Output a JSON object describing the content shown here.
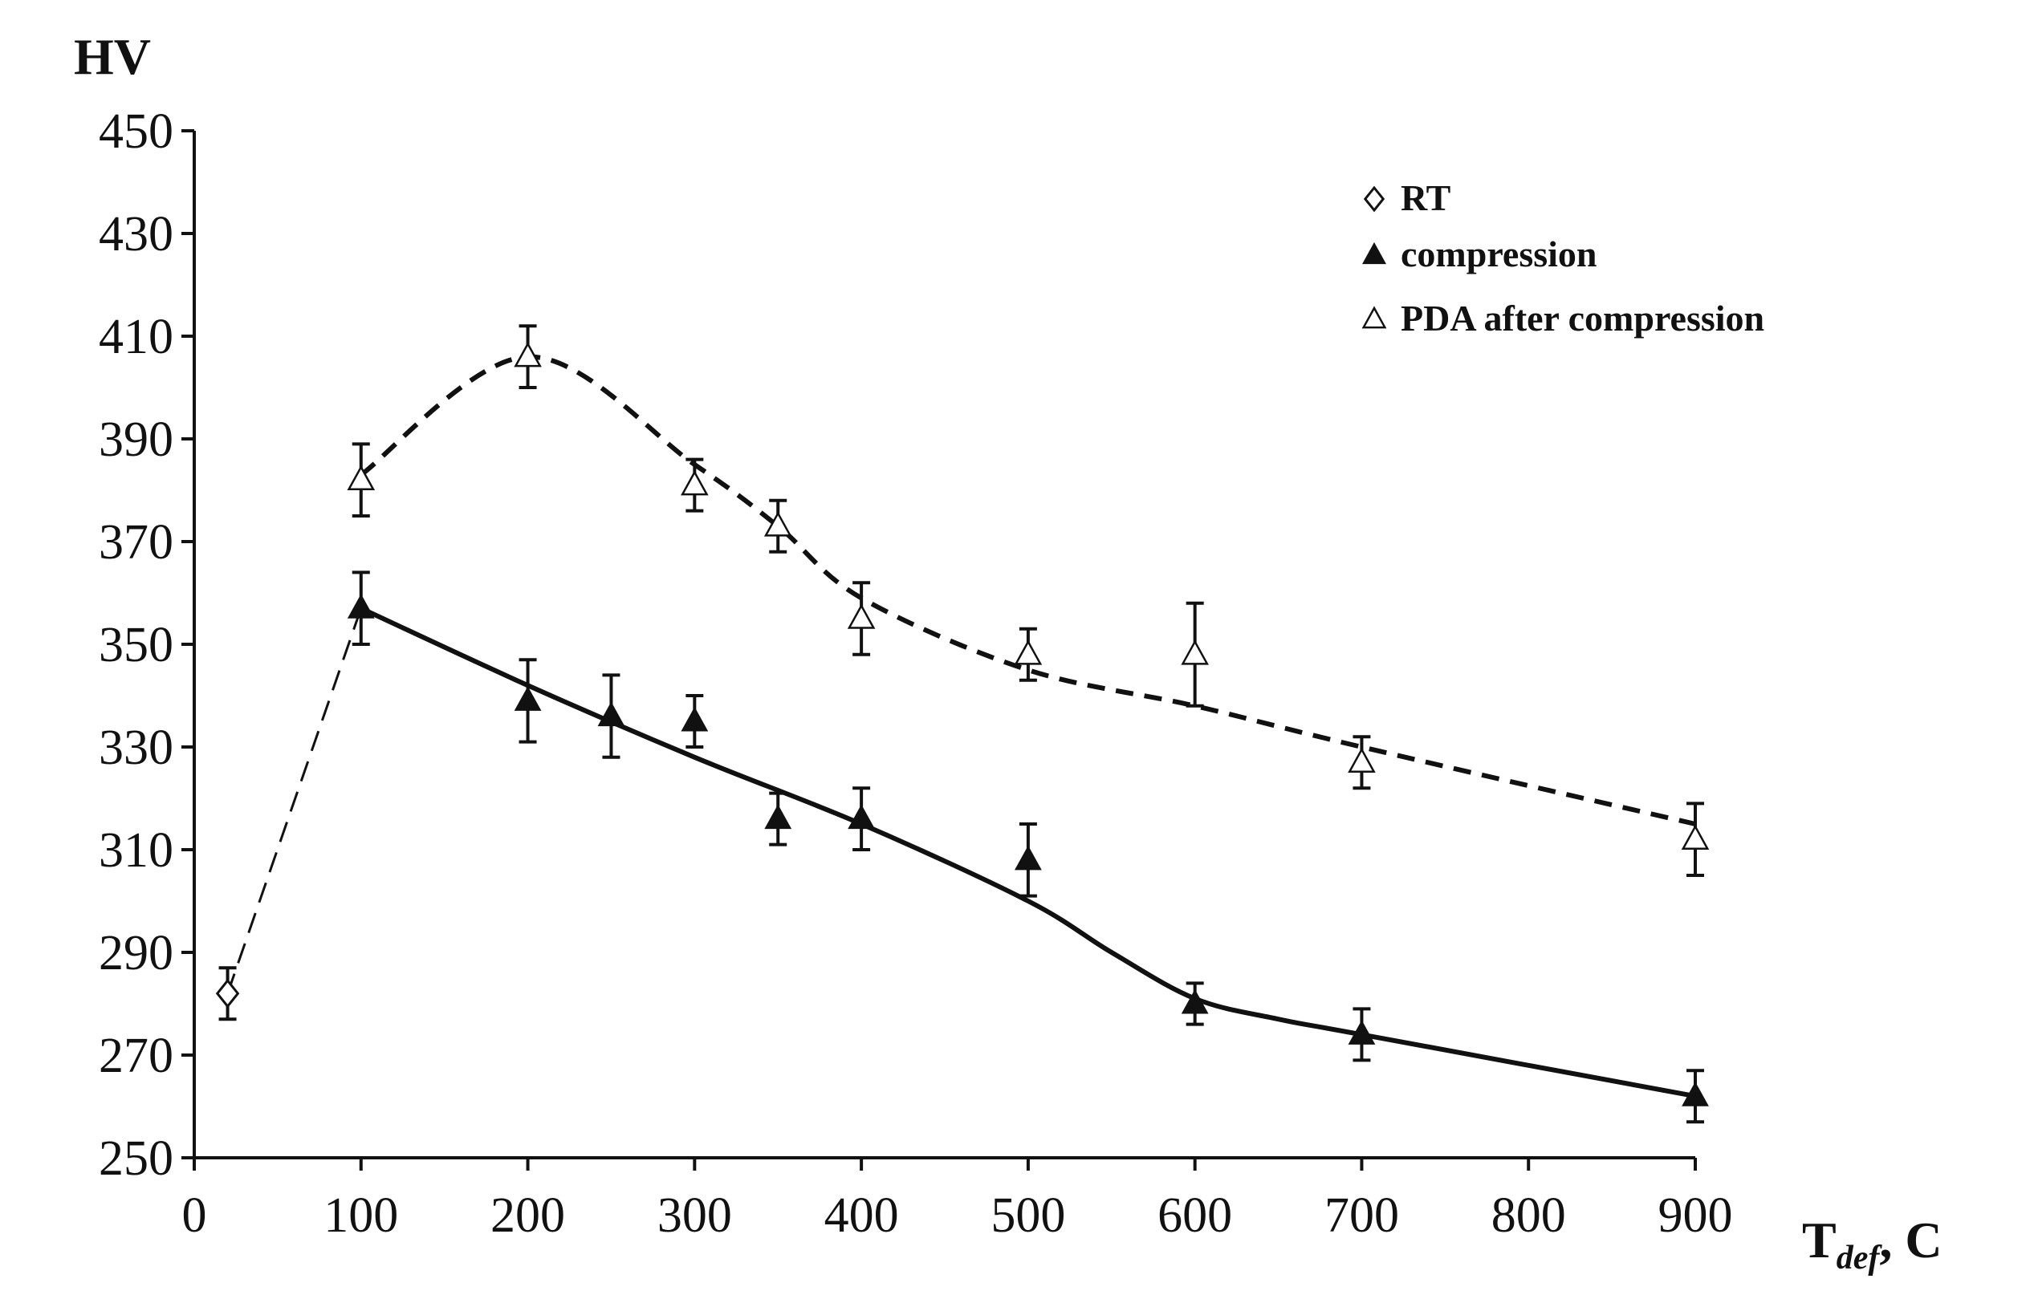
{
  "chart_data": {
    "type": "scatter",
    "title": "",
    "ylabel": "HV",
    "xlabel": {
      "main": "T",
      "sub": "def",
      "unit": ",  C"
    },
    "xlim": [
      0,
      900
    ],
    "ylim": [
      250,
      450
    ],
    "xticks": [
      0,
      100,
      200,
      300,
      400,
      500,
      600,
      700,
      800,
      900
    ],
    "yticks": [
      250,
      270,
      290,
      310,
      330,
      350,
      370,
      390,
      410,
      430,
      450
    ],
    "grid": false,
    "legend_position": "top-right",
    "series": [
      {
        "name": "RT",
        "marker": "diamond-open",
        "points": [
          {
            "x": 20,
            "y": 282,
            "err": 5
          }
        ]
      },
      {
        "name": "compression",
        "marker": "triangle-filled",
        "points": [
          {
            "x": 100,
            "y": 357,
            "err": 7
          },
          {
            "x": 200,
            "y": 339,
            "err": 8
          },
          {
            "x": 250,
            "y": 336,
            "err": 8
          },
          {
            "x": 300,
            "y": 335,
            "err": 5
          },
          {
            "x": 350,
            "y": 316,
            "err": 5
          },
          {
            "x": 400,
            "y": 316,
            "err": 6
          },
          {
            "x": 500,
            "y": 308,
            "err": 7
          },
          {
            "x": 600,
            "y": 280,
            "err": 4
          },
          {
            "x": 700,
            "y": 274,
            "err": 5
          },
          {
            "x": 900,
            "y": 262,
            "err": 5
          }
        ]
      },
      {
        "name": "PDA after compression",
        "marker": "triangle-open",
        "points": [
          {
            "x": 100,
            "y": 382,
            "err": 7
          },
          {
            "x": 200,
            "y": 406,
            "err": 6
          },
          {
            "x": 300,
            "y": 381,
            "err": 5
          },
          {
            "x": 350,
            "y": 373,
            "err": 5
          },
          {
            "x": 400,
            "y": 355,
            "err": 7
          },
          {
            "x": 500,
            "y": 348,
            "err": 5
          },
          {
            "x": 600,
            "y": 348,
            "err": 10
          },
          {
            "x": 700,
            "y": 327,
            "err": 5
          },
          {
            "x": 900,
            "y": 312,
            "err": 7
          }
        ]
      }
    ],
    "trend_lines": [
      {
        "name": "rt-to-compression-link",
        "style": "dashed-thin",
        "points": [
          [
            20,
            282
          ],
          [
            100,
            357
          ]
        ]
      },
      {
        "name": "compression-trend",
        "style": "solid",
        "points": [
          [
            100,
            357
          ],
          [
            200,
            342
          ],
          [
            300,
            328
          ],
          [
            400,
            315
          ],
          [
            500,
            300
          ],
          [
            550,
            290
          ],
          [
            600,
            281
          ],
          [
            650,
            277
          ],
          [
            700,
            274
          ],
          [
            900,
            262
          ]
        ]
      },
      {
        "name": "pda-trend",
        "style": "dashed",
        "points": [
          [
            100,
            383
          ],
          [
            200,
            406
          ],
          [
            300,
            385
          ],
          [
            350,
            373
          ],
          [
            400,
            359
          ],
          [
            500,
            345
          ],
          [
            600,
            338
          ],
          [
            700,
            330
          ],
          [
            900,
            315
          ]
        ]
      }
    ]
  },
  "colors": {
    "ink": "#111111",
    "background": "#ffffff"
  }
}
